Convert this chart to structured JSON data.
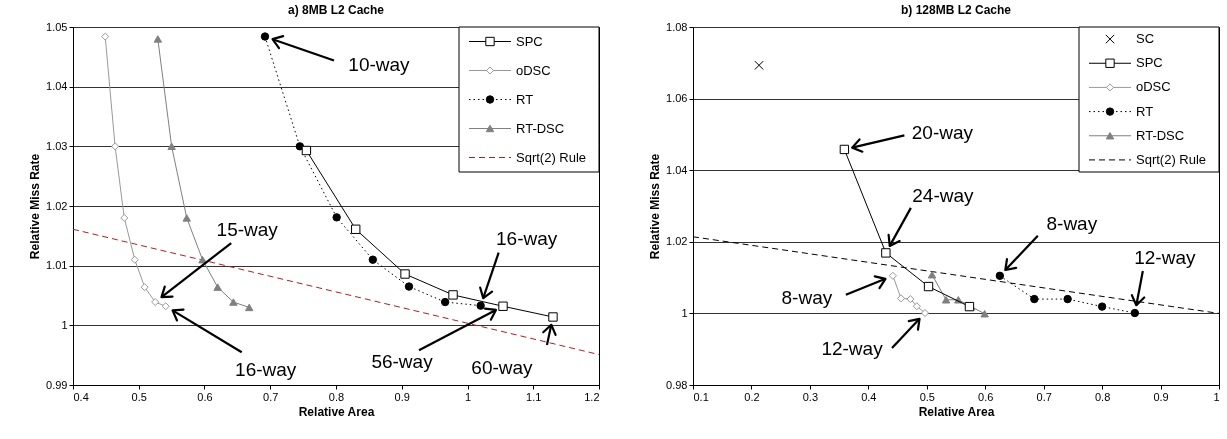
{
  "chart_data": [
    {
      "type": "line",
      "title": "a) 8MB L2 Cache",
      "xlabel": "Relative Area",
      "ylabel": "Relative Miss Rate",
      "xlim": [
        0.4,
        1.2
      ],
      "ylim": [
        0.99,
        1.05
      ],
      "xticks": [
        0.4,
        0.5,
        0.6,
        0.7,
        0.8,
        0.9,
        1,
        1.1,
        1.2
      ],
      "yticks": [
        0.99,
        1,
        1.01,
        1.02,
        1.03,
        1.04,
        1.05
      ],
      "grid": "y",
      "legend": "top right",
      "series": [
        {
          "name": "SPC",
          "color": "#000000",
          "marker": "square",
          "line_style": "solid",
          "x": [
            0.755,
            0.83,
            0.905,
            0.978,
            1.054,
            1.13
          ],
          "values": [
            1.0293,
            1.0161,
            1.0086,
            1.0051,
            1.0032,
            1.0014
          ]
        },
        {
          "name": "oDSC",
          "color": "#999999",
          "marker": "diamond",
          "line_style": "solid",
          "x": [
            0.449,
            0.464,
            0.478,
            0.494,
            0.509,
            0.525,
            0.541
          ],
          "values": [
            1.0484,
            1.03,
            1.018,
            1.011,
            1.0064,
            1.0039,
            1.0032
          ]
        },
        {
          "name": "RT",
          "color": "#000000",
          "marker": "circle",
          "line_style": "dotted",
          "x": [
            0.692,
            0.745,
            0.801,
            0.856,
            0.911,
            0.966,
            1.02
          ],
          "values": [
            1.0484,
            1.03,
            1.0181,
            1.011,
            1.0065,
            1.0039,
            1.0033
          ]
        },
        {
          "name": "RT-DSC",
          "color": "#808080",
          "marker": "triangle",
          "line_style": "solid",
          "x": [
            0.529,
            0.55,
            0.573,
            0.597,
            0.62,
            0.644,
            0.668
          ],
          "values": [
            1.048,
            1.03,
            1.018,
            1.011,
            1.0064,
            1.0039,
            1.003
          ]
        },
        {
          "name": "Sqrt(2) Rule",
          "color": "#aa2222",
          "marker": "none",
          "line_style": "dashed",
          "x": [
            0.4,
            1.2
          ],
          "values": [
            1.0161,
            0.9951
          ]
        }
      ],
      "annotations": [
        {
          "text": "10-way",
          "x": 0.692,
          "y": 1.0484
        },
        {
          "text": "15-way",
          "x": 0.525,
          "y": 1.0039
        },
        {
          "text": "16-way",
          "x": 0.541,
          "y": 1.0032
        },
        {
          "text": "16-way",
          "x": 1.02,
          "y": 1.0033
        },
        {
          "text": "56-way",
          "x": 1.054,
          "y": 1.0032
        },
        {
          "text": "60-way",
          "x": 1.13,
          "y": 1.0014
        }
      ]
    },
    {
      "type": "line",
      "title": "b) 128MB L2 Cache",
      "xlabel": "Relative Area",
      "ylabel": "Relative Miss Rate",
      "xlim": [
        0.1,
        1
      ],
      "ylim": [
        0.98,
        1.08
      ],
      "xticks": [
        0.1,
        0.2,
        0.3,
        0.4,
        0.5,
        0.6,
        0.7,
        0.8,
        0.9,
        1
      ],
      "yticks": [
        0.98,
        1,
        1.02,
        1.04,
        1.06,
        1.08
      ],
      "grid": "y",
      "legend": "top right",
      "series": [
        {
          "name": "SC",
          "type": "scatter",
          "color": "#000000",
          "marker": "cross",
          "x": [
            0.213
          ],
          "values": [
            1.0693
          ]
        },
        {
          "name": "SPC",
          "color": "#000000",
          "marker": "square",
          "line_style": "solid",
          "x": [
            0.359,
            0.43,
            0.503,
            0.573
          ],
          "values": [
            1.0458,
            1.0169,
            1.0075,
            1.0019
          ]
        },
        {
          "name": "oDSC",
          "color": "#999999",
          "marker": "diamond",
          "line_style": "solid",
          "x": [
            0.442,
            0.456,
            0.472,
            0.483,
            0.497
          ],
          "values": [
            1.0105,
            1.0042,
            1.004,
            1.002,
            1.0001
          ]
        },
        {
          "name": "RT",
          "color": "#000000",
          "marker": "circle",
          "line_style": "dotted",
          "x": [
            0.625,
            0.684,
            0.741,
            0.8,
            0.856
          ],
          "values": [
            1.0105,
            1.004,
            1.004,
            1.0019,
            1.0001
          ]
        },
        {
          "name": "RT-DSC",
          "color": "#808080",
          "marker": "triangle",
          "line_style": "solid",
          "x": [
            0.509,
            0.533,
            0.554,
            0.576,
            0.599
          ],
          "values": [
            1.0108,
            1.0038,
            1.0038,
            1.0019,
            0.9999
          ]
        },
        {
          "name": "Sqrt(2) Rule",
          "color": "#000000",
          "marker": "none",
          "line_style": "dashed",
          "x": [
            0.1,
            1
          ],
          "values": [
            1.0214,
            1.0
          ]
        }
      ],
      "annotations": [
        {
          "text": "20-way",
          "x": 0.359,
          "y": 1.0458
        },
        {
          "text": "24-way",
          "x": 0.43,
          "y": 1.0169
        },
        {
          "text": "8-way",
          "x": 0.442,
          "y": 1.0105
        },
        {
          "text": "12-way",
          "x": 0.497,
          "y": 1.0001
        },
        {
          "text": "8-way",
          "x": 0.625,
          "y": 1.0105
        },
        {
          "text": "12-way",
          "x": 0.856,
          "y": 1.0001
        }
      ]
    }
  ]
}
